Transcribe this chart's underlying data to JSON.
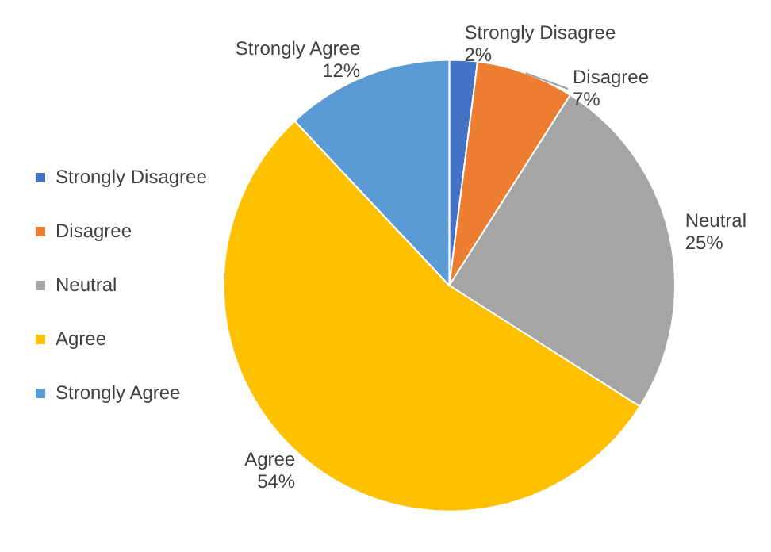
{
  "chart_data": {
    "type": "pie",
    "categories": [
      "Strongly Disagree",
      "Disagree",
      "Neutral",
      "Agree",
      "Strongly Agree"
    ],
    "values": [
      2,
      7,
      25,
      54,
      12
    ],
    "value_labels": [
      "2%",
      "7%",
      "25%",
      "54%",
      "12%"
    ],
    "colors": [
      "#4472c4",
      "#ed7d31",
      "#a5a5a5",
      "#ffc000",
      "#5b9bd5"
    ],
    "legend": "left"
  }
}
